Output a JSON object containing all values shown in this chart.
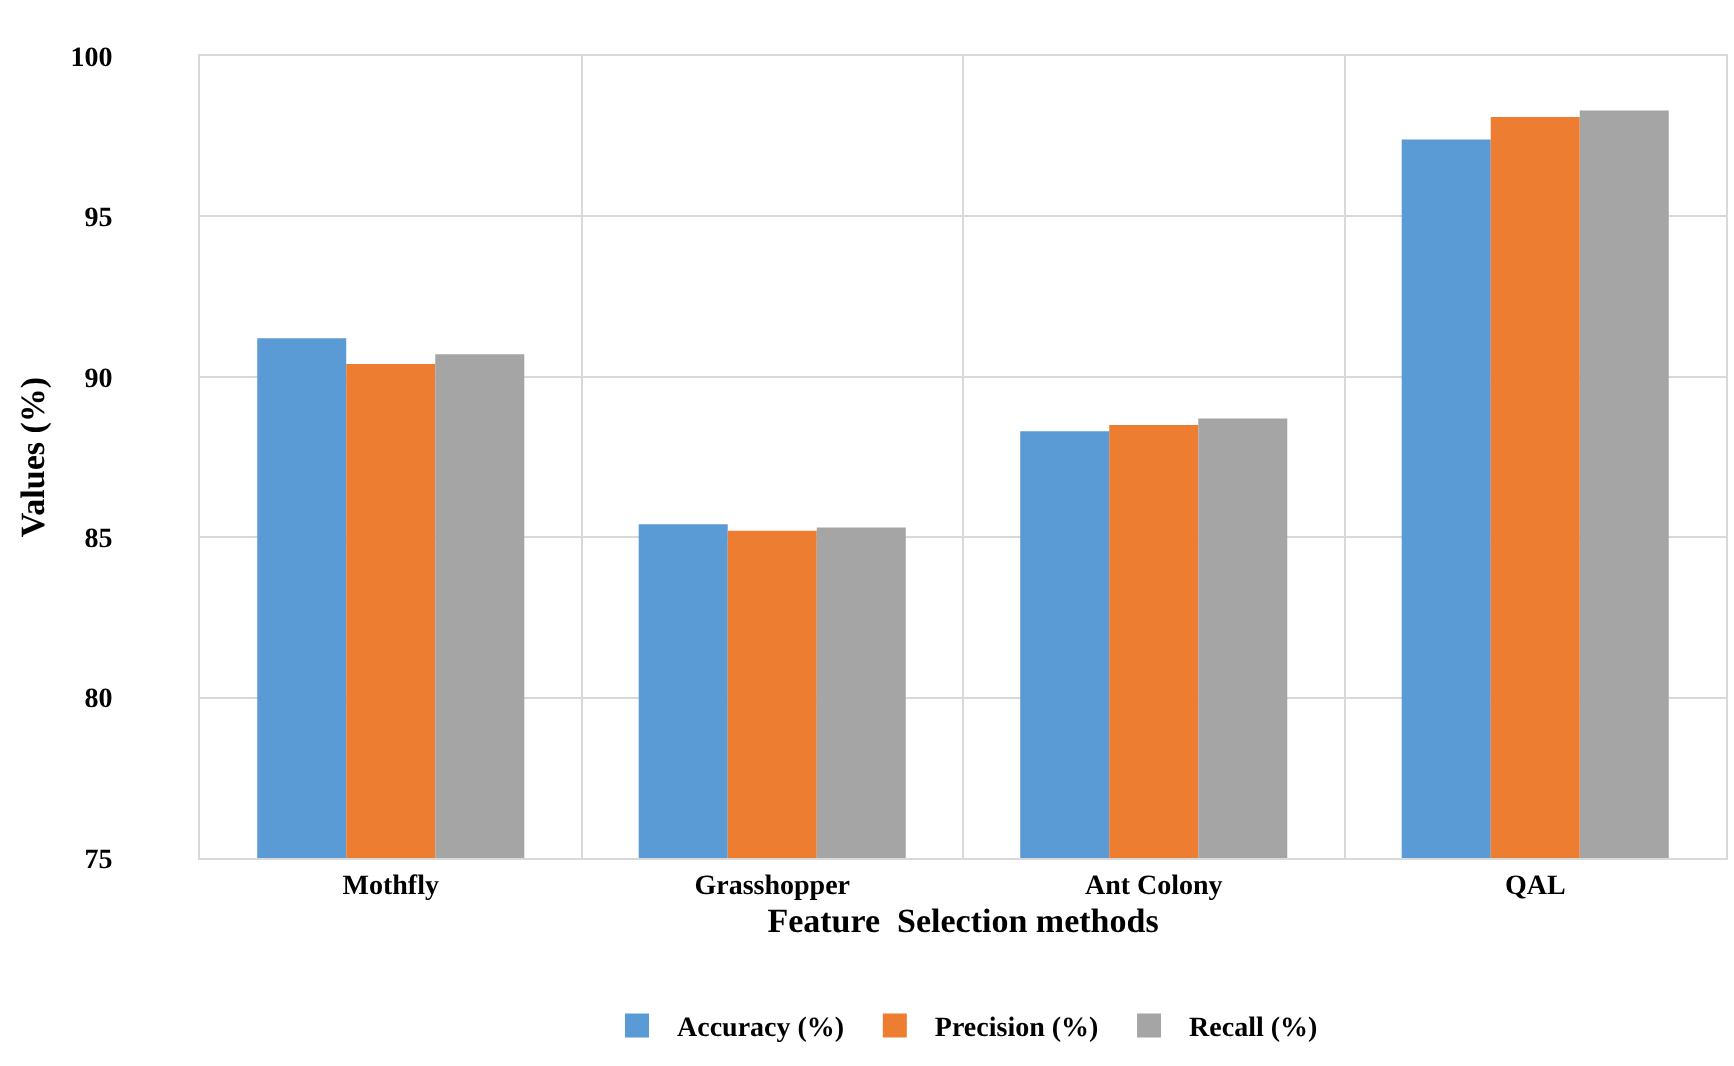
{
  "chart_data": {
    "type": "bar",
    "xlabel": "Feature  Selection methods",
    "ylabel": "Values (%)",
    "categories": [
      "Mothfly",
      "Grasshopper",
      "Ant Colony",
      "QAL"
    ],
    "series": [
      {
        "name": "Accuracy (%)",
        "color": "#5b9bd5",
        "values": [
          91.2,
          85.4,
          88.3,
          97.4
        ]
      },
      {
        "name": "Precision (%)",
        "color": "#ed7d31",
        "values": [
          90.4,
          85.2,
          88.5,
          98.1
        ]
      },
      {
        "name": "Recall (%)",
        "color": "#a5a5a5",
        "values": [
          90.7,
          85.3,
          88.7,
          98.3
        ]
      }
    ],
    "ylim": [
      75,
      100
    ],
    "yticks": [
      75,
      80,
      85,
      90,
      95,
      100
    ],
    "grid": true,
    "legend": "bottom"
  }
}
